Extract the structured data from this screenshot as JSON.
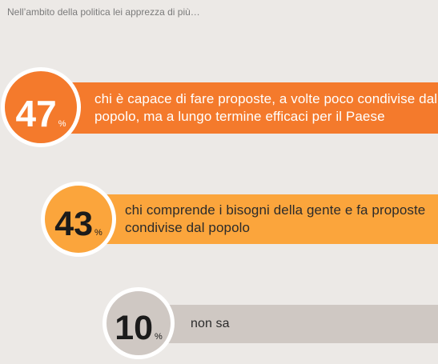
{
  "header": {
    "question": "Nell’ambito della politica lei apprezza di più…"
  },
  "items": [
    {
      "value": "47",
      "unit": "%",
      "label": "chi è capace di fare proposte, a volte poco condivise dal popolo, ma a lungo termine efficaci per il Paese"
    },
    {
      "value": "43",
      "unit": "%",
      "label": "chi comprende i bisogni della gente e fa proposte condivise dal popolo"
    },
    {
      "value": "10",
      "unit": "%",
      "label": "non sa"
    }
  ],
  "colors": {
    "background": "#ece9e6",
    "item_1": "#f47a2c",
    "item_2": "#fba53c",
    "item_3": "#cfc8c3"
  },
  "chart_data": {
    "type": "bar",
    "title": "Nell’ambito della politica lei apprezza di più…",
    "categories": [
      "chi è capace di fare proposte, a volte poco condivise dal popolo, ma a lungo termine efficaci per il Paese",
      "chi comprende i bisogni della gente e fa proposte condivise dal popolo",
      "non sa"
    ],
    "values": [
      47,
      43,
      10
    ],
    "unit": "%"
  }
}
